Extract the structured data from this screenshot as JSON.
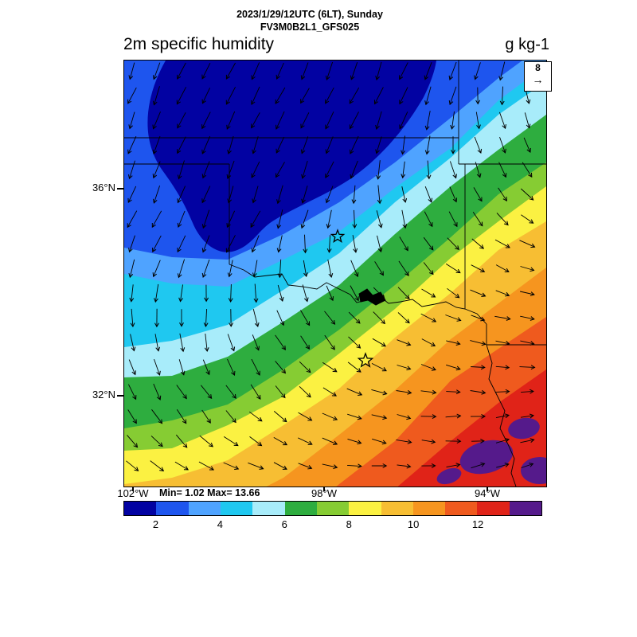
{
  "header": {
    "datetime_line": "2023/1/29/12UTC (6LT), Sunday",
    "model_line": "FV3M0B2L1_GFS025"
  },
  "titles": {
    "field": "2m specific humidity",
    "units": "g kg-1"
  },
  "axes": {
    "lat_ticks": [
      {
        "label": "36°N"
      },
      {
        "label": "32°N"
      }
    ],
    "lon_ticks": [
      {
        "label": "102°W"
      },
      {
        "label": "98°W"
      },
      {
        "label": "94°W"
      }
    ]
  },
  "stats": {
    "min": 1.02,
    "max": 13.66,
    "text": "Min= 1.02 Max= 13.66"
  },
  "reference_vector": {
    "value": "8",
    "arrow_glyph": "→"
  },
  "chart_data": {
    "type": "heatmap",
    "subtype": "filled-contour map with wind vectors",
    "title": "2m specific humidity",
    "units": "g kg-1",
    "valid_time": "2023/1/29/12UTC (6LT), Sunday",
    "model_run": "FV3M0B2L1_GFS025",
    "value_min": 1.02,
    "value_max": 13.66,
    "reference_wind_vector": 8,
    "colorbar": {
      "levels": [
        1,
        2,
        3,
        4,
        5,
        6,
        7,
        8,
        9,
        10,
        11,
        12,
        13,
        14
      ],
      "tick_labels": [
        "2",
        "4",
        "6",
        "8",
        "10",
        "12"
      ],
      "colors": [
        "#0202A2",
        "#1E55EE",
        "#4FA3FF",
        "#1FC8F0",
        "#A8ECFA",
        "#2EAD3F",
        "#86CC33",
        "#FBF142",
        "#F7BE33",
        "#F6951F",
        "#EF5A1E",
        "#E02318",
        "#551A8B"
      ]
    },
    "map": {
      "lat_ticks": [
        "36°N",
        "32°N"
      ],
      "lon_ticks": [
        "102°W",
        "98°W",
        "94°W"
      ],
      "region": "South-central United States (Texas / Oklahoma, state borders and Red River drawn)",
      "markers": [
        "open star marker in central Oklahoma",
        "open star marker in north-central Texas",
        "small black lake polygon on the Red River"
      ]
    },
    "field_description": "Specific humidity increases in SW-NE oriented diagonal bands from ~1-2 g/kg (dark blue) in the northwest corner to >13 g/kg (red with purple patches) in the southeast corner.",
    "wind_description": "Vectors point south-southwestward (northerly flow) over the dry blue/cyan sector, veering through southeast to east-northeastward (southwesterly flow) over the moist orange/red sector; vectors are longest in the dry northwest."
  }
}
